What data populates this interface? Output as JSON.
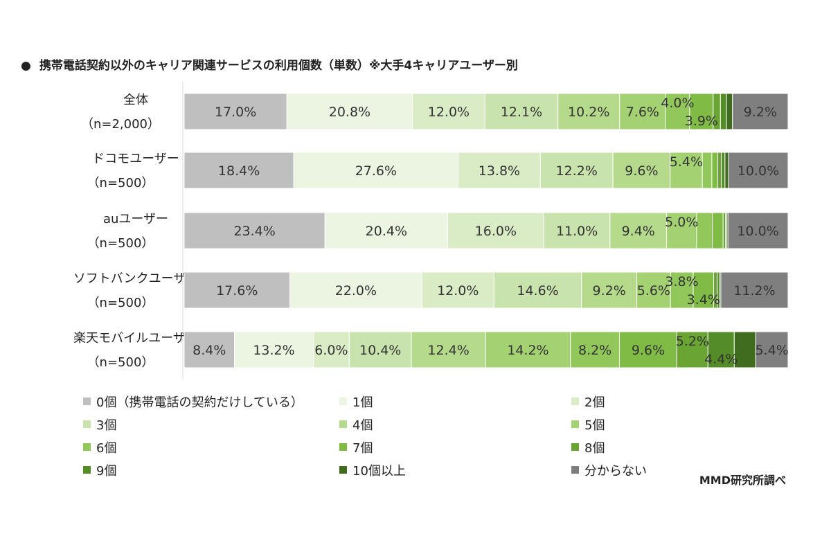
{
  "title": "携帯電話契約以外のキャリア関連サービスの利用個数（単数）※大手4キャリアユーザー別",
  "title_bullet": "●",
  "source": "MMD研究所調べ",
  "chart_data": {
    "type": "bar",
    "orientation": "horizontal",
    "stacked": "100%",
    "title": "携帯電話契約以外のキャリア関連サービスの利用個数（単数）※大手4キャリアユーザー別",
    "categories": [
      {
        "line1": "全体",
        "line2": "（n=2,000）"
      },
      {
        "line1": "ドコモユーザー",
        "line2": "（n=500）"
      },
      {
        "line1": "auユーザー",
        "line2": "（n=500）"
      },
      {
        "line1": "ソフトバンクユーザー",
        "line2": "（n=500）"
      },
      {
        "line1": "楽天モバイルユーザー",
        "line2": "（n=500）"
      }
    ],
    "series": [
      {
        "name": "0個（携帯電話の契約だけしている）",
        "color": "#bfbfbf",
        "values": [
          17.0,
          18.4,
          23.4,
          17.6,
          8.4
        ]
      },
      {
        "name": "1個",
        "color": "#ebf5e1",
        "values": [
          20.8,
          27.6,
          20.4,
          22.0,
          13.2
        ]
      },
      {
        "name": "2個",
        "color": "#d9ecc6",
        "values": [
          12.0,
          13.8,
          16.0,
          12.0,
          6.0
        ]
      },
      {
        "name": "3個",
        "color": "#c8e3ab",
        "values": [
          12.1,
          12.2,
          11.0,
          14.6,
          10.4
        ]
      },
      {
        "name": "4個",
        "color": "#b5da8c",
        "values": [
          10.2,
          9.6,
          9.4,
          9.2,
          12.4
        ]
      },
      {
        "name": "5個",
        "color": "#a4d273",
        "values": [
          7.6,
          5.4,
          5.0,
          5.6,
          14.2
        ]
      },
      {
        "name": "6個",
        "color": "#92c85b",
        "values": [
          4.0,
          1.6,
          2.6,
          3.8,
          8.2
        ]
      },
      {
        "name": "7個",
        "color": "#7fbb45",
        "values": [
          3.9,
          1.0,
          1.8,
          3.4,
          9.6
        ]
      },
      {
        "name": "8個",
        "color": "#6aa534",
        "values": [
          1.2,
          0.6,
          0.4,
          0.6,
          5.2
        ]
      },
      {
        "name": "9個",
        "color": "#548c27",
        "values": [
          1.0,
          0.6,
          0.2,
          0.4,
          4.4
        ]
      },
      {
        "name": "10個以上",
        "color": "#3f6d1d",
        "values": [
          1.0,
          0.6,
          0.2,
          0.2,
          3.6
        ]
      },
      {
        "name": "分からない",
        "color": "#7f7f7f",
        "values": [
          9.2,
          10.0,
          10.0,
          11.2,
          5.4
        ]
      }
    ],
    "data_labels": [
      [
        "17.0%",
        "20.8%",
        "12.0%",
        "12.1%",
        "10.2%",
        "7.6%",
        "4.0%",
        "3.9%",
        "",
        "",
        "",
        "9.2%"
      ],
      [
        "18.4%",
        "27.6%",
        "13.8%",
        "12.2%",
        "9.6%",
        "5.4%",
        "",
        "",
        "",
        "",
        "",
        "10.0%"
      ],
      [
        "23.4%",
        "20.4%",
        "16.0%",
        "11.0%",
        "9.4%",
        "5.0%",
        "",
        "",
        "",
        "",
        "",
        "10.0%"
      ],
      [
        "17.6%",
        "22.0%",
        "12.0%",
        "14.6%",
        "9.2%",
        "5.6%",
        "3.8%",
        "3.4%",
        "",
        "",
        "",
        "11.2%"
      ],
      [
        "8.4%",
        "13.2%",
        "6.0%",
        "10.4%",
        "12.4%",
        "14.2%",
        "8.2%",
        "9.6%",
        "5.2%",
        "4.4%",
        "",
        "5.4%"
      ]
    ],
    "xlim": [
      0,
      100
    ],
    "grid": false,
    "legend_position": "bottom"
  }
}
